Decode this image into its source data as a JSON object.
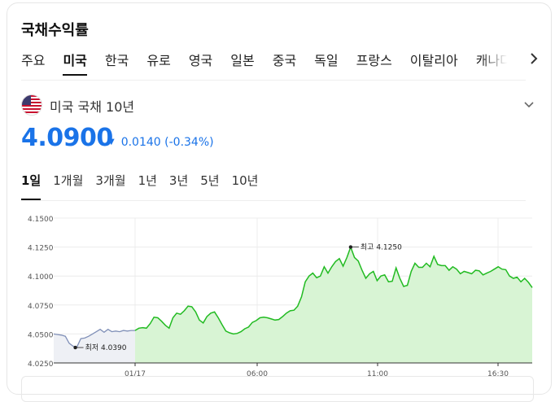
{
  "header": {
    "title": "국채수익률"
  },
  "country_tabs": [
    {
      "label": "주요",
      "active": false
    },
    {
      "label": "미국",
      "active": true
    },
    {
      "label": "한국",
      "active": false
    },
    {
      "label": "유로",
      "active": false
    },
    {
      "label": "영국",
      "active": false
    },
    {
      "label": "일본",
      "active": false
    },
    {
      "label": "중국",
      "active": false
    },
    {
      "label": "독일",
      "active": false
    },
    {
      "label": "프랑스",
      "active": false
    },
    {
      "label": "이탈리아",
      "active": false
    },
    {
      "label": "캐나다",
      "active": false
    }
  ],
  "bond": {
    "name": "미국 국채 10년",
    "flag_icon": "us-flag-icon",
    "price": "4.0900",
    "change": "0.0140",
    "change_pct": "(-0.34%)",
    "direction": "down",
    "color": "#1a73e8"
  },
  "periods": [
    {
      "label": "1일",
      "active": true
    },
    {
      "label": "1개월",
      "active": false
    },
    {
      "label": "3개월",
      "active": false
    },
    {
      "label": "1년",
      "active": false
    },
    {
      "label": "3년",
      "active": false
    },
    {
      "label": "5년",
      "active": false
    },
    {
      "label": "10년",
      "active": false
    }
  ],
  "chart_data": {
    "type": "area",
    "ylim": [
      4.025,
      4.15
    ],
    "y_ticks": [
      "4.1500",
      "4.1250",
      "4.1000",
      "4.0750",
      "4.0500",
      "4.0250"
    ],
    "x_ticks": [
      "01/17",
      "06:00",
      "11:00",
      "16:30"
    ],
    "grid": true,
    "colors": {
      "previous": "#8090b8",
      "current": "#22bb22",
      "current_fill": "#d8f4d4",
      "previous_fill": "#eef0f5"
    },
    "annotations": {
      "high": "최고 4.1250",
      "low": "최저 4.0390"
    },
    "series": [
      {
        "values": [
          4.05,
          4.0495,
          4.049,
          4.048,
          4.042,
          4.0395,
          4.039,
          4.046,
          4.0465,
          4.048,
          4.05,
          4.052,
          4.054,
          4.0515,
          4.054,
          4.052,
          4.0525,
          4.052,
          4.053,
          4.0525,
          4.053,
          4.053
        ]
      },
      {
        "values": [
          4.053,
          4.055,
          4.0555,
          4.055,
          4.059,
          4.0645,
          4.064,
          4.061,
          4.0575,
          4.055,
          4.064,
          4.068,
          4.067,
          4.07,
          4.074,
          4.0735,
          4.069,
          4.062,
          4.0595,
          4.065,
          4.068,
          4.069,
          4.064,
          4.058,
          4.0525,
          4.051,
          4.05,
          4.0505,
          4.052,
          4.0545,
          4.056,
          4.06,
          4.0615,
          4.064,
          4.0645,
          4.064,
          4.063,
          4.062,
          4.0625,
          4.065,
          4.068,
          4.07,
          4.0705,
          4.074,
          4.082,
          4.095,
          4.1,
          4.1025,
          4.0985,
          4.1,
          4.108,
          4.1025,
          4.108,
          4.1125,
          4.115,
          4.1085,
          4.116,
          4.125,
          4.116,
          4.113,
          4.105,
          4.098,
          4.102,
          4.104,
          4.096,
          4.1,
          4.101,
          4.095,
          4.0955,
          4.107,
          4.098,
          4.091,
          4.092,
          4.104,
          4.111,
          4.1075,
          4.1075,
          4.111,
          4.108,
          4.117,
          4.11,
          4.109,
          4.109,
          4.105,
          4.108,
          4.106,
          4.102,
          4.104,
          4.103,
          4.102,
          4.105,
          4.1045,
          4.101,
          4.1025,
          4.104,
          4.106,
          4.108,
          4.106,
          4.1055,
          4.1,
          4.098,
          4.099,
          4.095,
          4.098,
          4.0945,
          4.09
        ]
      }
    ]
  }
}
